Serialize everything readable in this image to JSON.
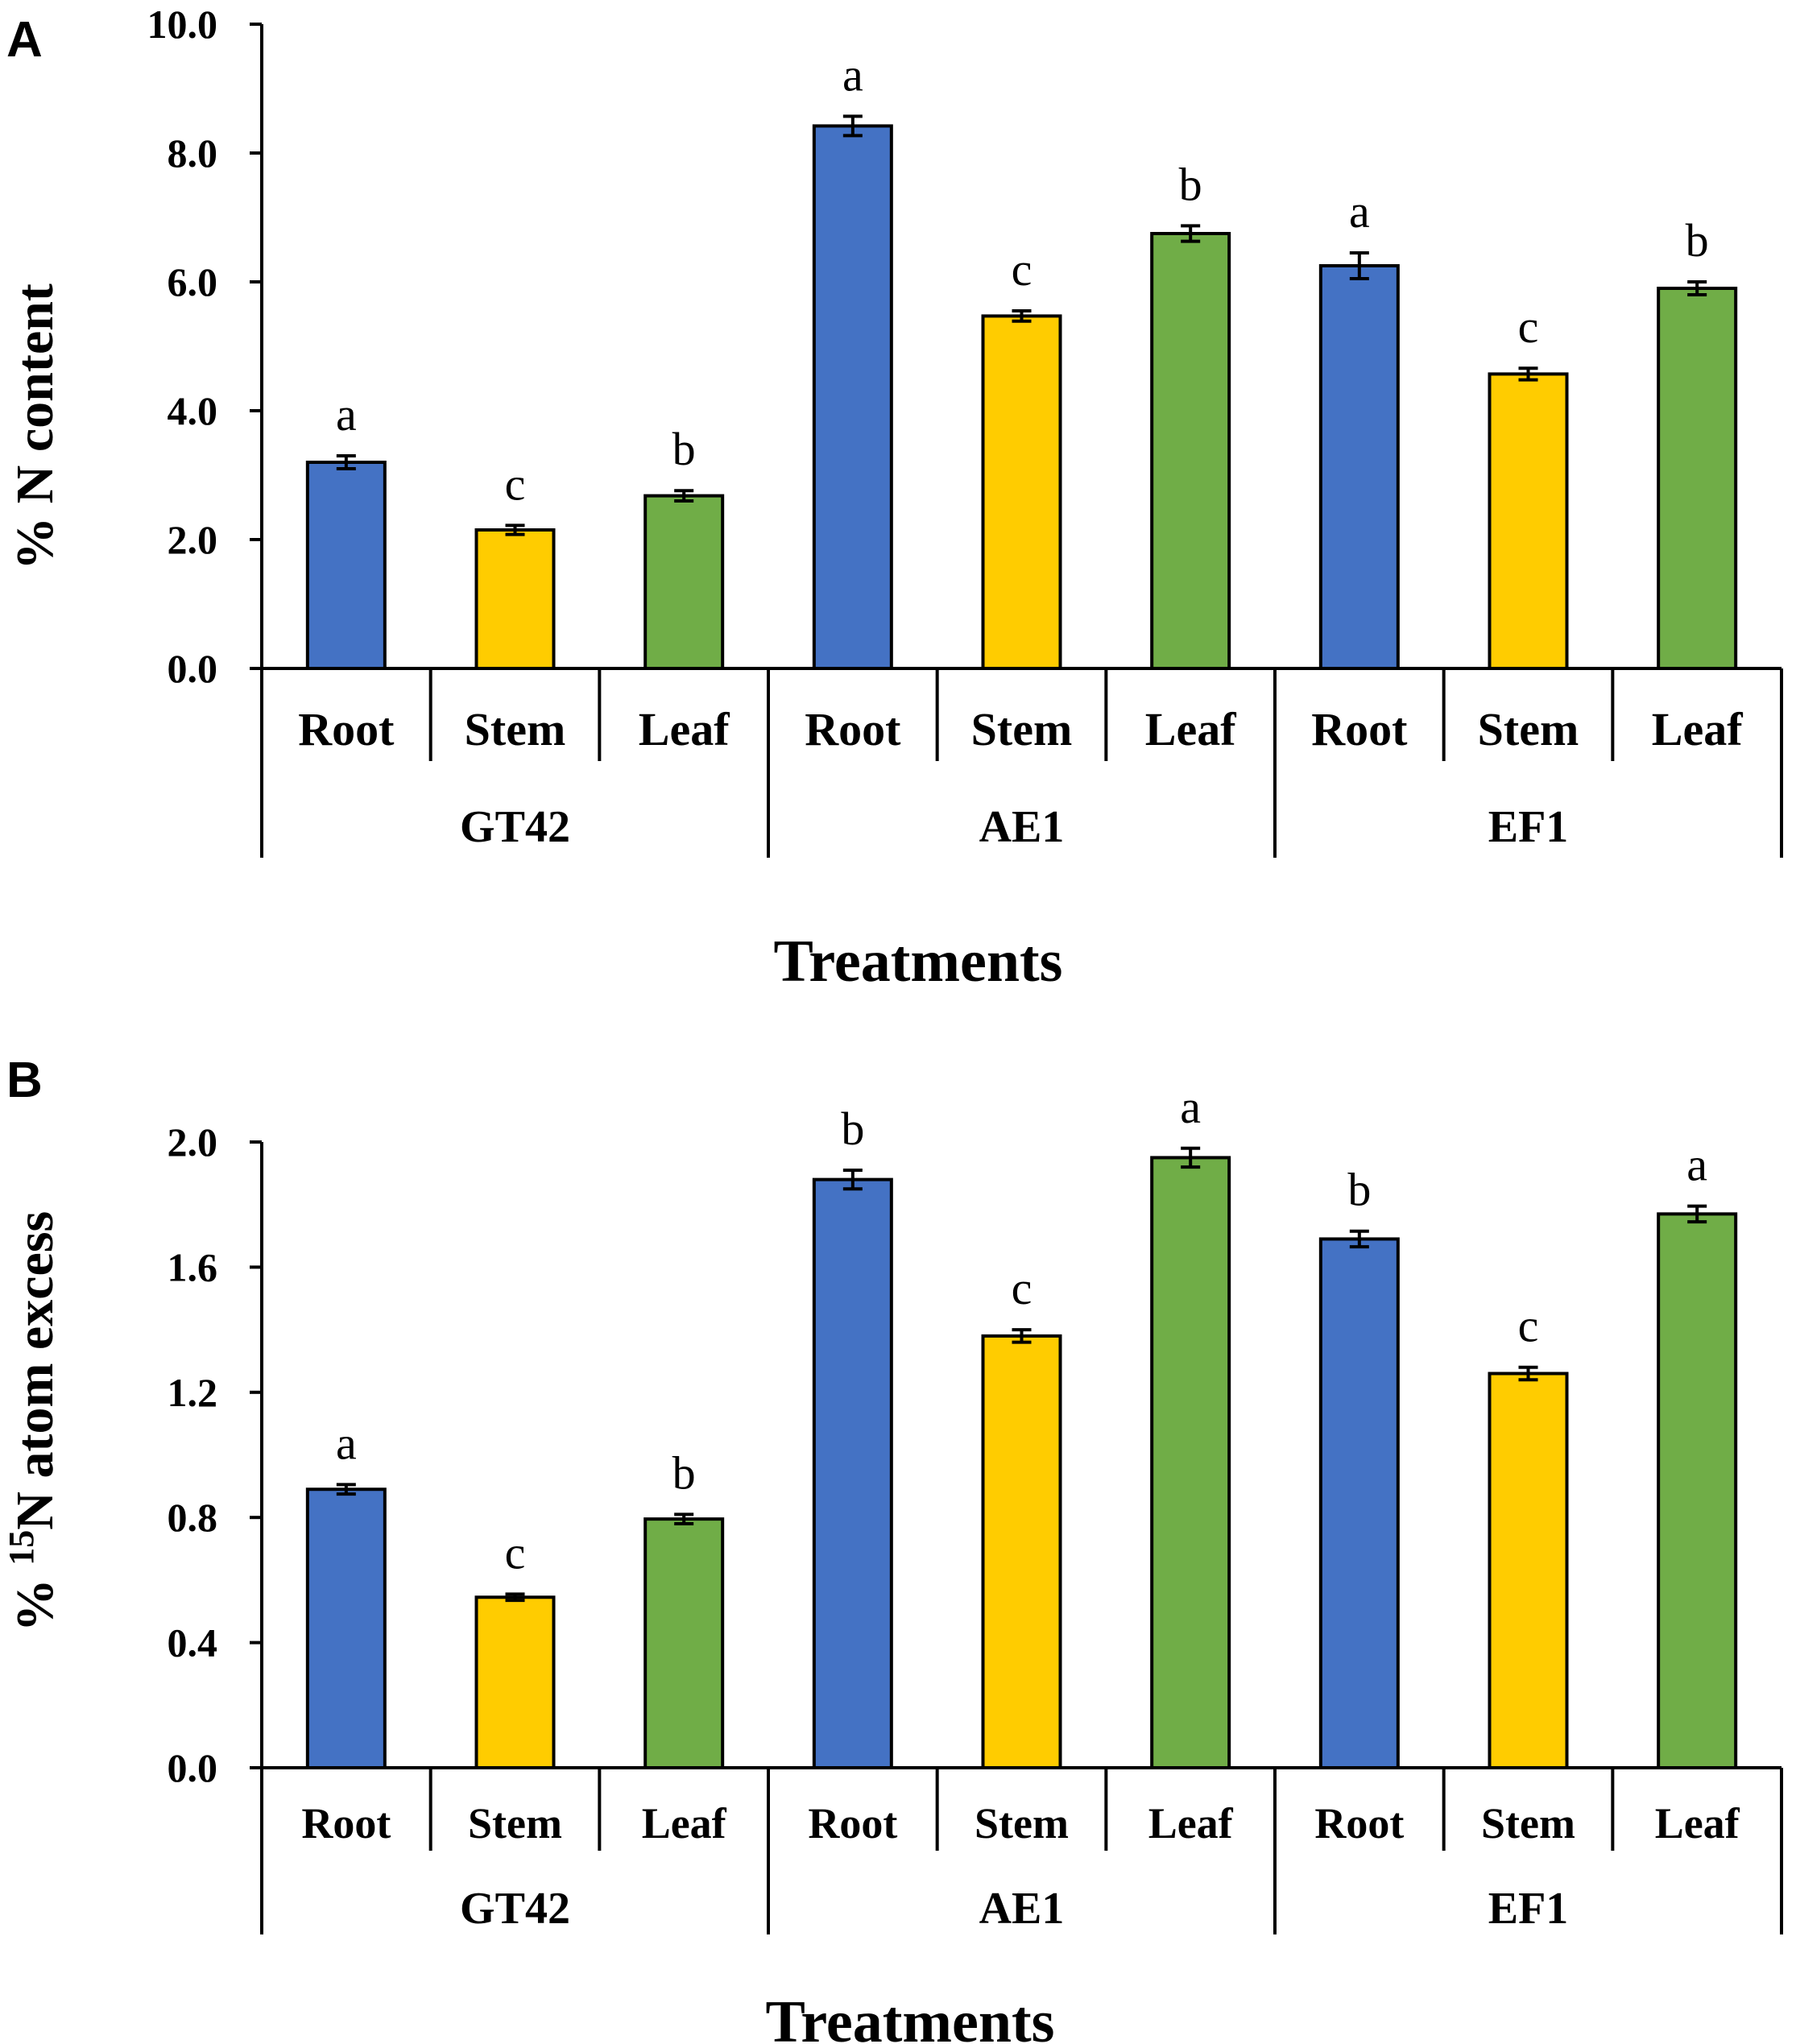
{
  "colors": {
    "Root": "#4472C4",
    "Stem": "#FFCC00",
    "Leaf": "#70AD47"
  },
  "chart_data": [
    {
      "panel_label": "A",
      "type": "bar",
      "title": "",
      "ylabel": "% N content",
      "xlabel": "Treatments",
      "ylim": [
        0,
        10
      ],
      "yticks": [
        "0.0",
        "2.0",
        "4.0",
        "6.0",
        "8.0",
        "10.0"
      ],
      "grid": false,
      "groups": [
        {
          "name": "GT42",
          "bars": [
            {
              "category": "Root",
              "value": 3.2,
              "error": 0.1,
              "sig": "a"
            },
            {
              "category": "Stem",
              "value": 2.15,
              "error": 0.07,
              "sig": "c"
            },
            {
              "category": "Leaf",
              "value": 2.68,
              "error": 0.08,
              "sig": "b"
            }
          ]
        },
        {
          "name": "AE1",
          "bars": [
            {
              "category": "Root",
              "value": 8.42,
              "error": 0.15,
              "sig": "a"
            },
            {
              "category": "Stem",
              "value": 5.47,
              "error": 0.08,
              "sig": "c"
            },
            {
              "category": "Leaf",
              "value": 6.75,
              "error": 0.12,
              "sig": "b"
            }
          ]
        },
        {
          "name": "EF1",
          "bars": [
            {
              "category": "Root",
              "value": 6.25,
              "error": 0.2,
              "sig": "a"
            },
            {
              "category": "Stem",
              "value": 4.57,
              "error": 0.09,
              "sig": "c"
            },
            {
              "category": "Leaf",
              "value": 5.9,
              "error": 0.1,
              "sig": "b"
            }
          ]
        }
      ]
    },
    {
      "panel_label": "B",
      "type": "bar",
      "title": "",
      "ylabel_prefix": "% ",
      "ylabel_sup": "15",
      "ylabel_suffix": "N atom excess",
      "xlabel": "Treatments",
      "ylim": [
        0,
        2.0
      ],
      "yticks": [
        "0.0",
        "0.4",
        "0.8",
        "1.2",
        "1.6",
        "2.0"
      ],
      "grid": false,
      "groups": [
        {
          "name": "GT42",
          "bars": [
            {
              "category": "Root",
              "value": 0.89,
              "error": 0.015,
              "sig": "a"
            },
            {
              "category": "Stem",
              "value": 0.545,
              "error": 0.01,
              "sig": "c"
            },
            {
              "category": "Leaf",
              "value": 0.795,
              "error": 0.015,
              "sig": "b"
            }
          ]
        },
        {
          "name": "AE1",
          "bars": [
            {
              "category": "Root",
              "value": 1.88,
              "error": 0.03,
              "sig": "b"
            },
            {
              "category": "Stem",
              "value": 1.38,
              "error": 0.02,
              "sig": "c"
            },
            {
              "category": "Leaf",
              "value": 1.95,
              "error": 0.03,
              "sig": "a"
            }
          ]
        },
        {
          "name": "EF1",
          "bars": [
            {
              "category": "Root",
              "value": 1.69,
              "error": 0.025,
              "sig": "b"
            },
            {
              "category": "Stem",
              "value": 1.26,
              "error": 0.02,
              "sig": "c"
            },
            {
              "category": "Leaf",
              "value": 1.77,
              "error": 0.025,
              "sig": "a"
            }
          ]
        }
      ]
    }
  ]
}
